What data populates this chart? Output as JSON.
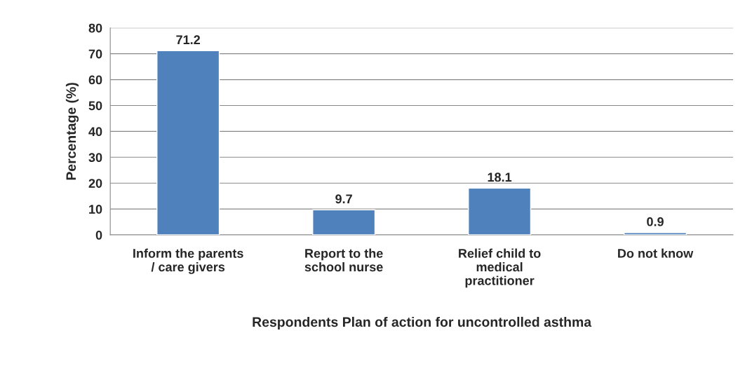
{
  "chart_data": {
    "type": "bar",
    "categories": [
      "Inform the parents\n/ care givers",
      "Report to the\nschool nurse",
      "Relief child to\nmedical\npractitioner",
      "Do not know"
    ],
    "values": [
      71.2,
      9.7,
      18.1,
      0.9
    ],
    "color": "#4f81bd",
    "xlabel": "Respondents Plan of action for uncontrolled asthma",
    "ylabel": "Percentage (%)",
    "ylim": [
      0,
      80
    ],
    "yticks": [
      0,
      10,
      20,
      30,
      40,
      50,
      60,
      70,
      80
    ],
    "grid": "y",
    "data_labels": true
  }
}
